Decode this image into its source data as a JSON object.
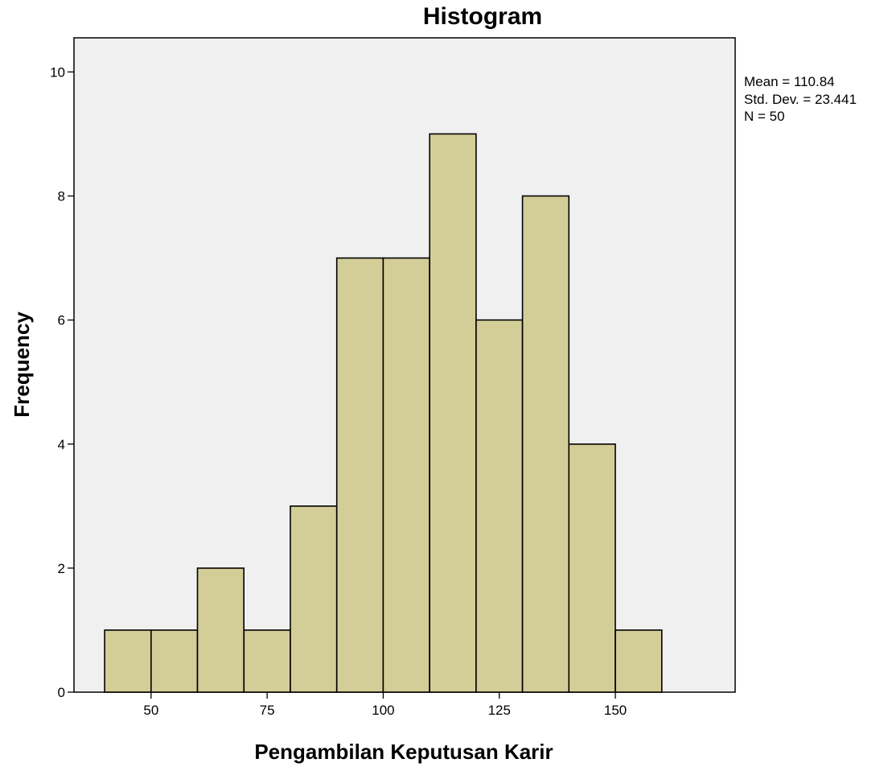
{
  "chart_data": {
    "type": "bar",
    "title": "Histogram",
    "xlabel": "Pengambilan Keputusan Karir",
    "ylabel": "Frequency",
    "bins": [
      {
        "start": 40,
        "end": 50,
        "count": 1
      },
      {
        "start": 50,
        "end": 60,
        "count": 1
      },
      {
        "start": 60,
        "end": 70,
        "count": 2
      },
      {
        "start": 70,
        "end": 80,
        "count": 1
      },
      {
        "start": 80,
        "end": 90,
        "count": 3
      },
      {
        "start": 90,
        "end": 100,
        "count": 7
      },
      {
        "start": 100,
        "end": 110,
        "count": 7
      },
      {
        "start": 110,
        "end": 120,
        "count": 9
      },
      {
        "start": 120,
        "end": 130,
        "count": 6
      },
      {
        "start": 130,
        "end": 140,
        "count": 8
      },
      {
        "start": 140,
        "end": 150,
        "count": 4
      },
      {
        "start": 150,
        "end": 160,
        "count": 1
      }
    ],
    "xticks": [
      50,
      75,
      100,
      125,
      150
    ],
    "yticks": [
      0,
      2,
      4,
      6,
      8,
      10
    ],
    "xlim": [
      33.4,
      175.8
    ],
    "ylim": [
      0,
      10.55
    ],
    "stats": {
      "mean": "Mean = 110.84",
      "std": "Std. Dev. = 23.441",
      "n": "N = 50"
    },
    "colors": {
      "bar": "#d3ce98",
      "plot_background": "#f0f0f0"
    }
  }
}
